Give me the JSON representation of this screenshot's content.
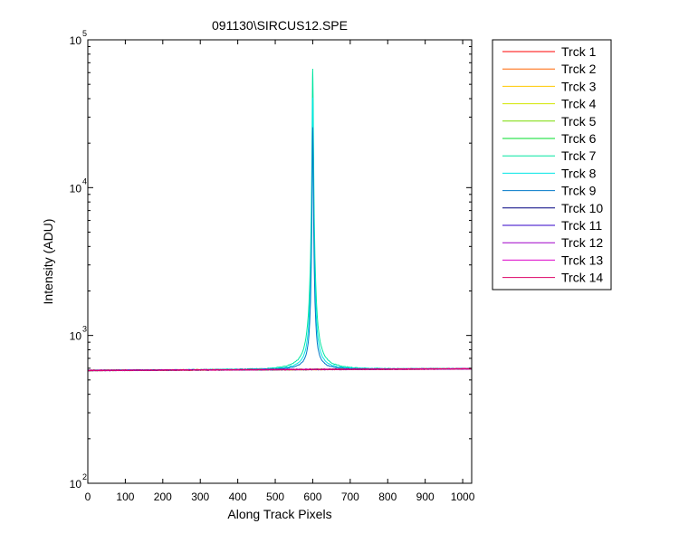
{
  "chart_data": {
    "type": "line",
    "title": "091130\\SIRCUS12.SPE",
    "xlabel": "Along Track Pixels",
    "ylabel": "Intensity (ADU)",
    "xlim": [
      0,
      1024
    ],
    "ylim": [
      100,
      100000
    ],
    "y_scale": "log",
    "x_ticks": [
      0,
      100,
      200,
      300,
      400,
      500,
      600,
      700,
      800,
      900,
      1000
    ],
    "y_ticks": [
      {
        "base": "10",
        "exp": "2",
        "value": 100
      },
      {
        "base": "10",
        "exp": "3",
        "value": 1000
      },
      {
        "base": "10",
        "exp": "4",
        "value": 10000
      },
      {
        "base": "10",
        "exp": "5",
        "value": 100000
      }
    ],
    "grid": false,
    "legend_position": "outside-right",
    "baseline_start": 580,
    "baseline_end": 595,
    "series": [
      {
        "name": "Trck 1",
        "color": "#ff0000",
        "peak": 0
      },
      {
        "name": "Trck 2",
        "color": "#ff6400",
        "peak": 0
      },
      {
        "name": "Trck 3",
        "color": "#ffc800",
        "peak": 0
      },
      {
        "name": "Trck 4",
        "color": "#d2e600",
        "peak": 0
      },
      {
        "name": "Trck 5",
        "color": "#78dc00",
        "peak": 0
      },
      {
        "name": "Trck 6",
        "color": "#00dc28",
        "peak": 0
      },
      {
        "name": "Trck 7",
        "color": "#00e6a0",
        "peak": 63000
      },
      {
        "name": "Trck 8",
        "color": "#00e6e6",
        "peak": 40000
      },
      {
        "name": "Trck 9",
        "color": "#0078c8",
        "peak": 25000
      },
      {
        "name": "Trck 10",
        "color": "#000080",
        "peak": 0
      },
      {
        "name": "Trck 11",
        "color": "#3200c8",
        "peak": 0
      },
      {
        "name": "Trck 12",
        "color": "#a000c8",
        "peak": 0
      },
      {
        "name": "Trck 13",
        "color": "#dc00c8",
        "peak": 0
      },
      {
        "name": "Trck 14",
        "color": "#dc0064",
        "peak": 0
      }
    ]
  }
}
